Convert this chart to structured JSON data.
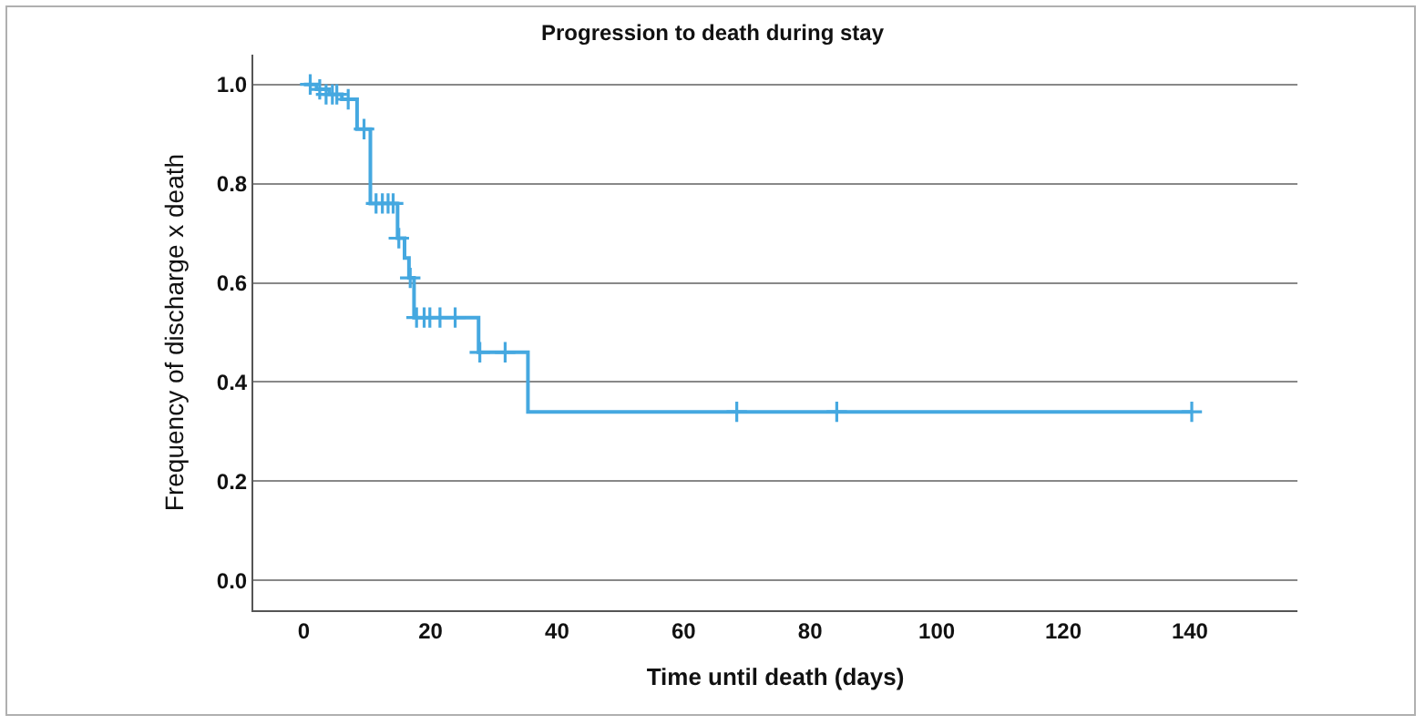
{
  "chart_data": {
    "type": "step",
    "title": "Progression to death during stay",
    "xlabel": "Time until death (days)",
    "ylabel": "Frequency of discharge x death",
    "xlim": [
      -8,
      157
    ],
    "xticks": [
      0,
      20,
      40,
      60,
      80,
      100,
      120,
      140
    ],
    "ylim": [
      -0.06,
      1.06
    ],
    "yticks": [
      {
        "value": 0,
        "label": "0.0"
      },
      {
        "value": 0.2,
        "label": "0.2"
      },
      {
        "value": 0.4,
        "label": "0.4"
      },
      {
        "value": 0.6,
        "label": "0.6"
      },
      {
        "value": 0.8,
        "label": "0.8"
      },
      {
        "value": 1,
        "label": "1.0"
      }
    ],
    "grid": "y",
    "line_style": "solid",
    "series": [
      {
        "type": "step",
        "color": "#45a8e0",
        "x": [
          0,
          2,
          4,
          6,
          8.4,
          10.5,
          14.8,
          15.9,
          16.6,
          17.4,
          27.6,
          35.4,
          140.3
        ],
        "values": [
          1.0,
          0.99,
          0.98,
          0.97,
          0.91,
          0.76,
          0.69,
          0.65,
          0.61,
          0.53,
          0.46,
          0.34,
          0.34
        ]
      },
      {
        "type": "scatter",
        "color": "#45a8e0",
        "marker": "cross",
        "x": [
          1,
          2.5,
          3.5,
          4.5,
          5.2,
          7,
          9.5,
          11.4,
          12.4,
          13.3,
          14.1,
          15,
          16.8,
          17.8,
          19,
          19.9,
          21.5,
          23.9,
          27.8,
          31.8,
          68.4,
          84.2,
          140.3
        ],
        "values": [
          1.0,
          0.99,
          0.98,
          0.98,
          0.98,
          0.97,
          0.91,
          0.76,
          0.76,
          0.76,
          0.76,
          0.69,
          0.61,
          0.53,
          0.53,
          0.53,
          0.53,
          0.53,
          0.46,
          0.46,
          0.34,
          0.34,
          0.34
        ]
      }
    ]
  }
}
